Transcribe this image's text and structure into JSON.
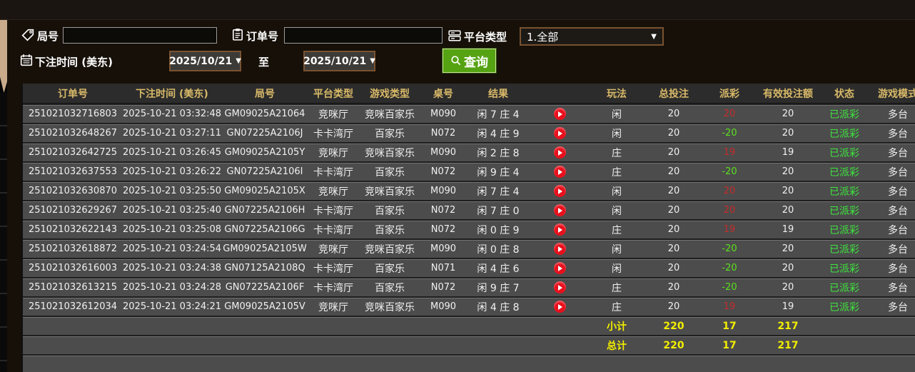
{
  "filters": {
    "game_no_label": "局号",
    "game_no_value": "",
    "order_no_label": "订单号",
    "order_no_value": "",
    "platform_type_label": "平台类型",
    "platform_type_value": "1.全部",
    "bet_time_label": "下注时间 (美东)",
    "date_from": "2025/10/21",
    "to_label": "至",
    "date_to": "2025/10/21",
    "query_label": "查询"
  },
  "colors": {
    "accent_gold": "#d8b968",
    "payout_positive": "#c62b2b",
    "payout_negative": "#5ae01c",
    "status_paid": "#3ee63e",
    "totals_yellow": "#f2ee00",
    "query_green": "#55a313",
    "play_red": "#e8101c"
  },
  "table": {
    "headers": {
      "order_no": "订单号",
      "bet_time": "下注时间 (美东)",
      "game_no": "局号",
      "platform": "平台类型",
      "game_type": "游戏类型",
      "table_no": "桌号",
      "result": "结果",
      "video": "",
      "play": "玩法",
      "total_bet": "总投注",
      "payout": "派彩",
      "valid_bet": "有效投注额",
      "status": "状态",
      "mode": "游戏模式"
    },
    "rows": [
      {
        "order_no": "251021032716803",
        "bet_time": "2025-10-21 03:32:48",
        "game_no": "GM09025A21064",
        "platform": "竞咪厅",
        "game_type": "竞咪百家乐",
        "table_no": "M090",
        "result": "闲 7 庄 4",
        "play": "闲",
        "total_bet": "20",
        "payout": "20",
        "payout_color": "red",
        "valid_bet": "20",
        "status": "已派彩",
        "mode": "多台"
      },
      {
        "order_no": "251021032648267",
        "bet_time": "2025-10-21 03:27:11",
        "game_no": "GN07225A2106J",
        "platform": "卡卡湾厅",
        "game_type": "百家乐",
        "table_no": "N072",
        "result": "闲 4 庄 9",
        "play": "闲",
        "total_bet": "20",
        "payout": "-20",
        "payout_color": "green",
        "valid_bet": "20",
        "status": "已派彩",
        "mode": "多台"
      },
      {
        "order_no": "251021032642725",
        "bet_time": "2025-10-21 03:26:45",
        "game_no": "GM09025A2105Y",
        "platform": "竞咪厅",
        "game_type": "竞咪百家乐",
        "table_no": "M090",
        "result": "闲 2 庄 8",
        "play": "庄",
        "total_bet": "20",
        "payout": "19",
        "payout_color": "red",
        "valid_bet": "19",
        "status": "已派彩",
        "mode": "多台"
      },
      {
        "order_no": "251021032637553",
        "bet_time": "2025-10-21 03:26:22",
        "game_no": "GN07225A2106I",
        "platform": "卡卡湾厅",
        "game_type": "百家乐",
        "table_no": "N072",
        "result": "闲 9 庄 4",
        "play": "庄",
        "total_bet": "20",
        "payout": "-20",
        "payout_color": "green",
        "valid_bet": "20",
        "status": "已派彩",
        "mode": "多台"
      },
      {
        "order_no": "251021032630870",
        "bet_time": "2025-10-21 03:25:50",
        "game_no": "GM09025A2105X",
        "platform": "竞咪厅",
        "game_type": "竞咪百家乐",
        "table_no": "M090",
        "result": "闲 7 庄 4",
        "play": "闲",
        "total_bet": "20",
        "payout": "20",
        "payout_color": "red",
        "valid_bet": "20",
        "status": "已派彩",
        "mode": "多台"
      },
      {
        "order_no": "251021032629267",
        "bet_time": "2025-10-21 03:25:40",
        "game_no": "GN07225A2106H",
        "platform": "卡卡湾厅",
        "game_type": "百家乐",
        "table_no": "N072",
        "result": "闲 7 庄 0",
        "play": "闲",
        "total_bet": "20",
        "payout": "20",
        "payout_color": "red",
        "valid_bet": "20",
        "status": "已派彩",
        "mode": "多台"
      },
      {
        "order_no": "251021032622143",
        "bet_time": "2025-10-21 03:25:08",
        "game_no": "GN07225A2106G",
        "platform": "卡卡湾厅",
        "game_type": "百家乐",
        "table_no": "N072",
        "result": "闲 0 庄 9",
        "play": "庄",
        "total_bet": "20",
        "payout": "19",
        "payout_color": "red",
        "valid_bet": "19",
        "status": "已派彩",
        "mode": "多台"
      },
      {
        "order_no": "251021032618872",
        "bet_time": "2025-10-21 03:24:54",
        "game_no": "GM09025A2105W",
        "platform": "竞咪厅",
        "game_type": "竞咪百家乐",
        "table_no": "M090",
        "result": "闲 0 庄 8",
        "play": "闲",
        "total_bet": "20",
        "payout": "-20",
        "payout_color": "green",
        "valid_bet": "20",
        "status": "已派彩",
        "mode": "多台"
      },
      {
        "order_no": "251021032616003",
        "bet_time": "2025-10-21 03:24:38",
        "game_no": "GN07125A2108Q",
        "platform": "卡卡湾厅",
        "game_type": "百家乐",
        "table_no": "N071",
        "result": "闲 4 庄 6",
        "play": "闲",
        "total_bet": "20",
        "payout": "-20",
        "payout_color": "green",
        "valid_bet": "20",
        "status": "已派彩",
        "mode": "多台"
      },
      {
        "order_no": "251021032613215",
        "bet_time": "2025-10-21 03:24:28",
        "game_no": "GN07225A2106F",
        "platform": "卡卡湾厅",
        "game_type": "百家乐",
        "table_no": "N072",
        "result": "闲 9 庄 7",
        "play": "庄",
        "total_bet": "20",
        "payout": "-20",
        "payout_color": "green",
        "valid_bet": "20",
        "status": "已派彩",
        "mode": "多台"
      },
      {
        "order_no": "251021032612034",
        "bet_time": "2025-10-21 03:24:21",
        "game_no": "GM09025A2105V",
        "platform": "竞咪厅",
        "game_type": "竞咪百家乐",
        "table_no": "M090",
        "result": "闲 4 庄 8",
        "play": "庄",
        "total_bet": "20",
        "payout": "19",
        "payout_color": "red",
        "valid_bet": "19",
        "status": "已派彩",
        "mode": "多台"
      }
    ],
    "subtotal": {
      "label": "小计",
      "total_bet": "220",
      "payout": "17",
      "valid_bet": "217"
    },
    "total": {
      "label": "总计",
      "total_bet": "220",
      "payout": "17",
      "valid_bet": "217"
    }
  }
}
